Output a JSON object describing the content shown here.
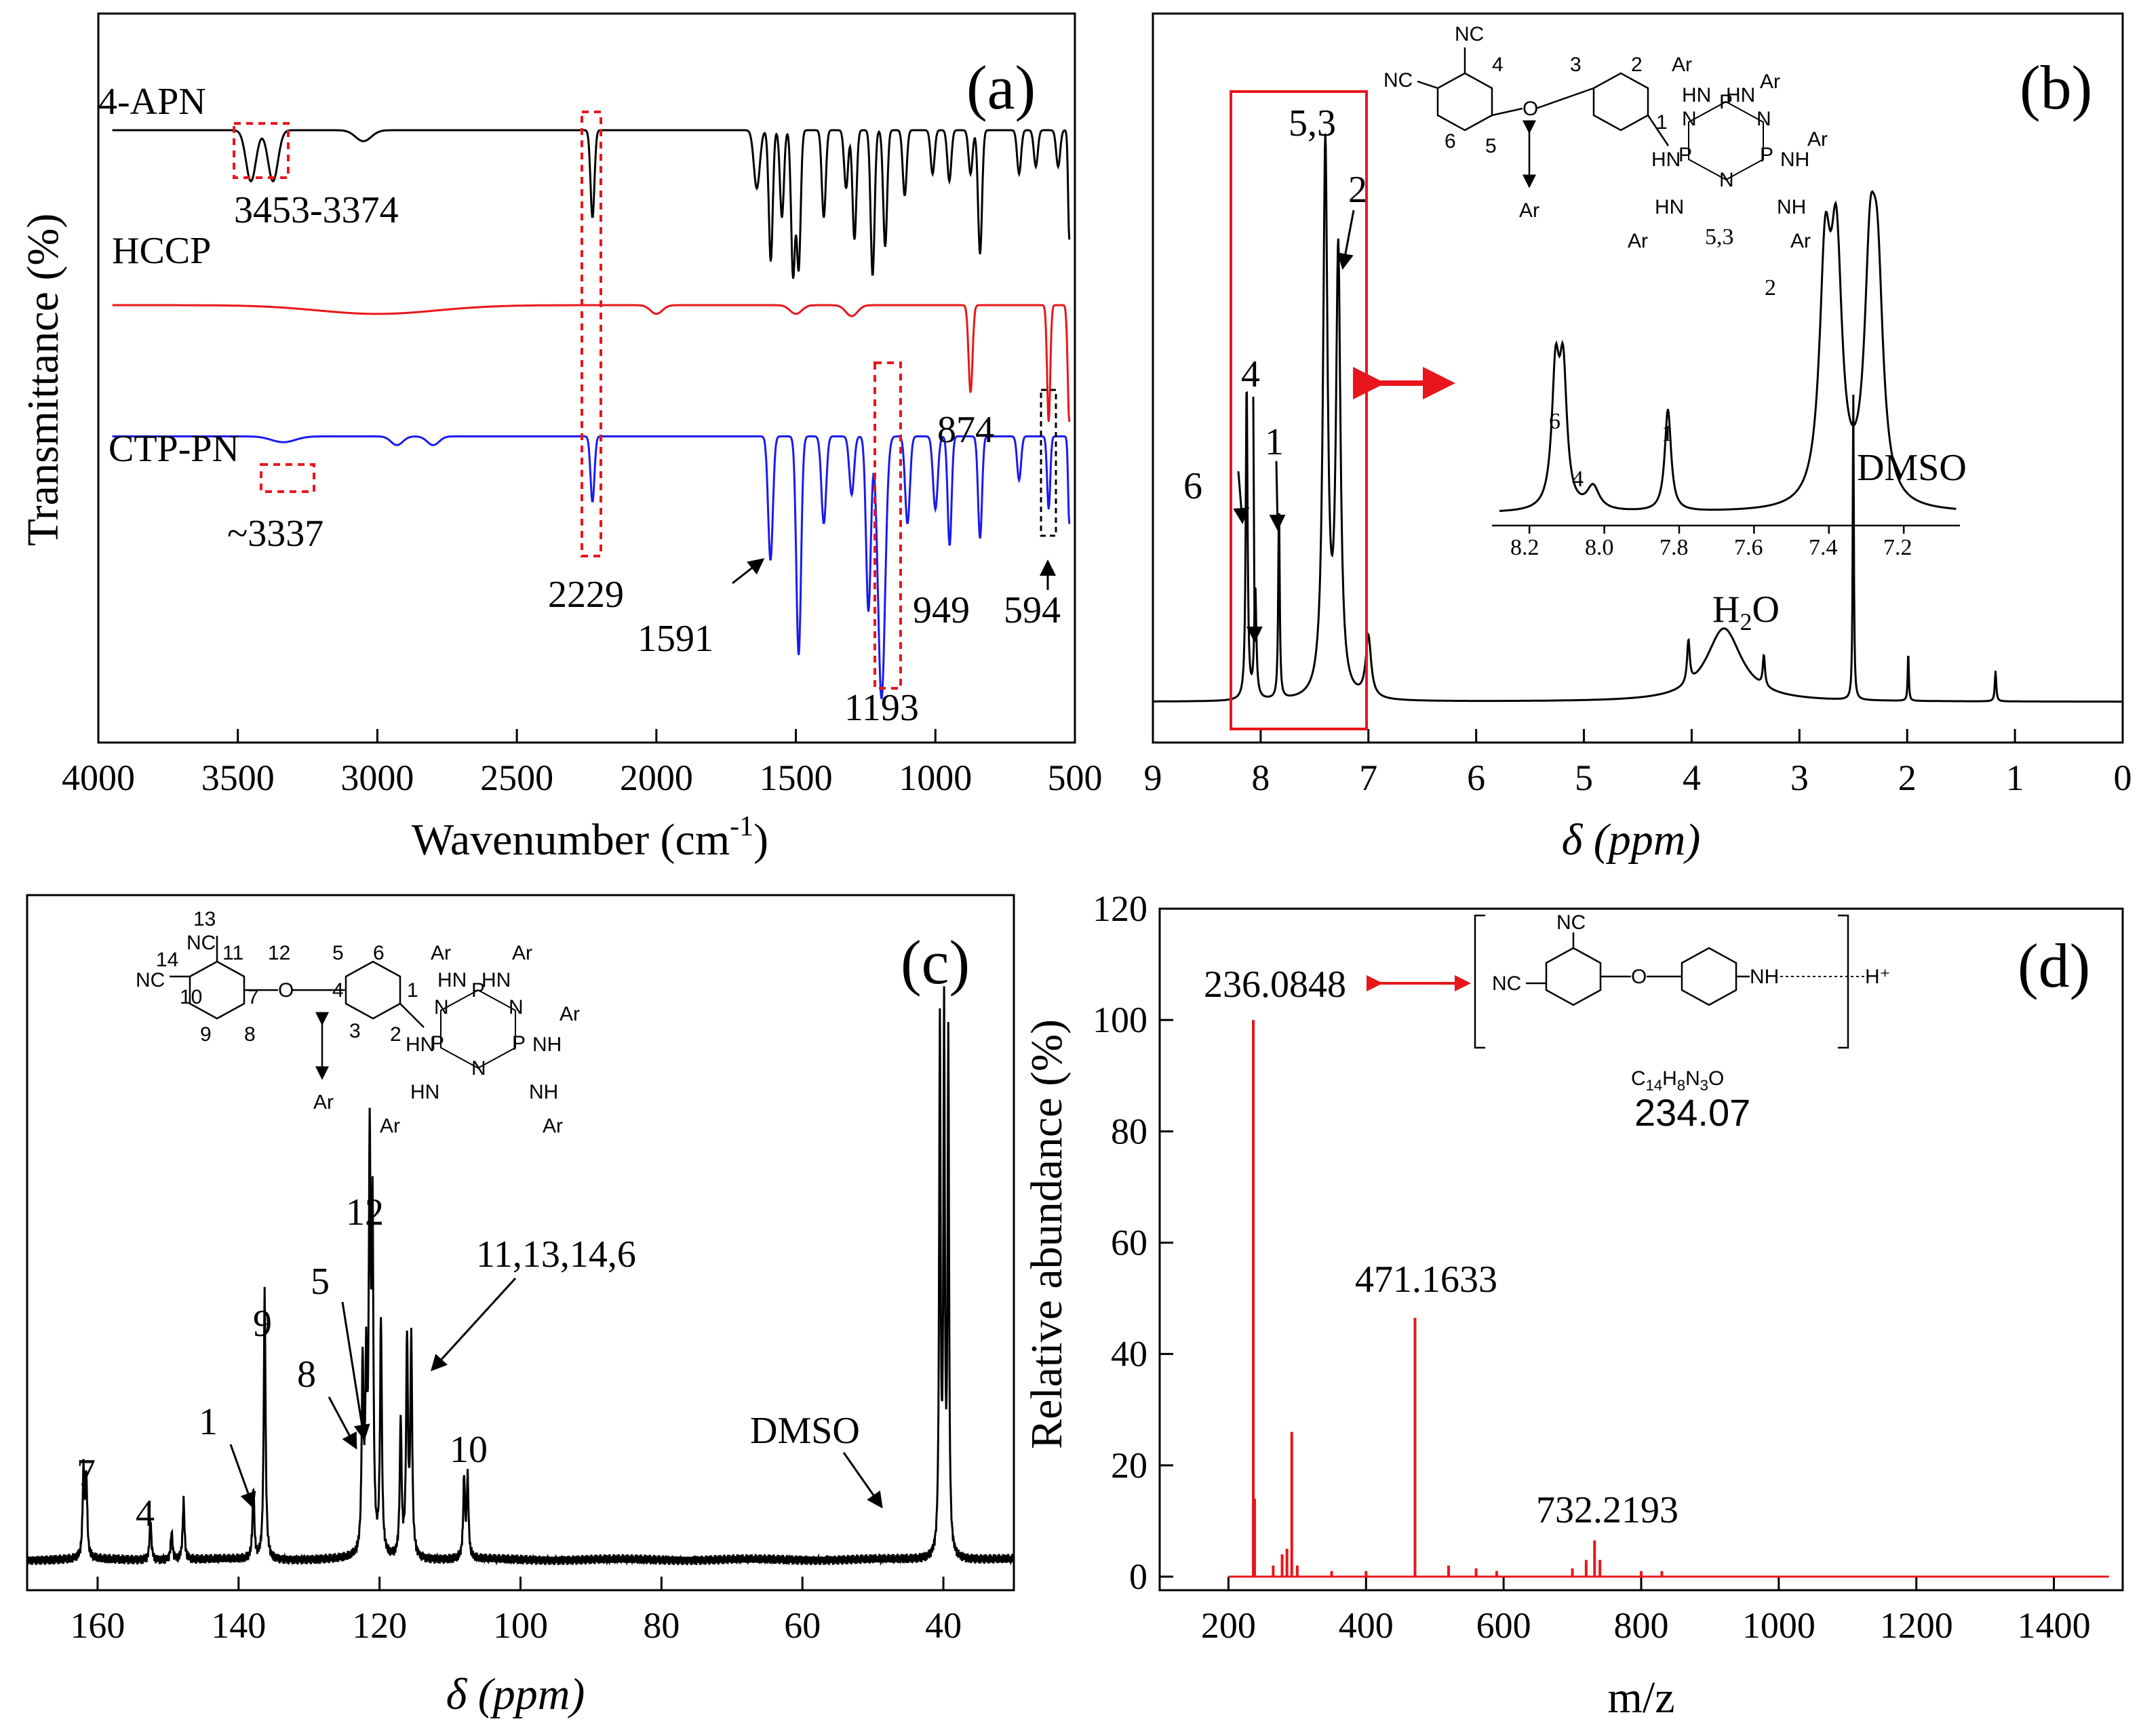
{
  "colors": {
    "black": "#000000",
    "red": "#e8161b",
    "blue": "#1a1af0",
    "magenta": "#e020e0",
    "hl_red": "#e8161b"
  },
  "chart_data": [
    {
      "panel": "(a)",
      "type": "line",
      "xlabel": "Wavenumber (cm",
      "xlabel_sup": "-1",
      "xlabel_end": ")",
      "ylabel": "Transmittance (%)",
      "xlim": [
        4000,
        500
      ],
      "xticks": [
        4000,
        3500,
        3000,
        2500,
        2000,
        1500,
        1000,
        500
      ],
      "series": [
        {
          "name": "4-APN",
          "color": "#000000",
          "baseline": 0.84,
          "peaks": [
            [
              3453,
              0.07,
              25
            ],
            [
              3374,
              0.07,
              25
            ],
            [
              3050,
              0.015,
              40
            ],
            [
              2229,
              0.12,
              10
            ],
            [
              1640,
              0.08,
              15
            ],
            [
              1590,
              0.18,
              10
            ],
            [
              1550,
              0.12,
              10
            ],
            [
              1510,
              0.2,
              10
            ],
            [
              1490,
              0.19,
              10
            ],
            [
              1400,
              0.12,
              10
            ],
            [
              1320,
              0.08,
              10
            ],
            [
              1290,
              0.15,
              10
            ],
            [
              1225,
              0.2,
              10
            ],
            [
              1180,
              0.16,
              10
            ],
            [
              1110,
              0.09,
              10
            ],
            [
              1010,
              0.06,
              10
            ],
            [
              950,
              0.07,
              10
            ],
            [
              874,
              0.06,
              10
            ],
            [
              840,
              0.17,
              10
            ],
            [
              700,
              0.06,
              10
            ],
            [
              640,
              0.05,
              10
            ],
            [
              560,
              0.05,
              10
            ],
            [
              520,
              0.15,
              6
            ]
          ]
        },
        {
          "name": "HCCP",
          "color": "#e8161b",
          "baseline": 0.6,
          "peaks": [
            [
              3000,
              0.012,
              300
            ],
            [
              2000,
              0.012,
              30
            ],
            [
              1500,
              0.012,
              30
            ],
            [
              1300,
              0.015,
              30
            ],
            [
              874,
              0.12,
              10
            ],
            [
              594,
              0.16,
              8
            ],
            [
              520,
              0.16,
              8
            ]
          ]
        },
        {
          "name": "CTP-PN",
          "color": "#1a1af0",
          "baseline": 0.42,
          "peaks": [
            [
              3337,
              0.008,
              60
            ],
            [
              2930,
              0.012,
              30
            ],
            [
              2800,
              0.012,
              30
            ],
            [
              2229,
              0.09,
              10
            ],
            [
              1591,
              0.17,
              12
            ],
            [
              1490,
              0.3,
              12
            ],
            [
              1400,
              0.12,
              12
            ],
            [
              1300,
              0.08,
              12
            ],
            [
              1240,
              0.24,
              12
            ],
            [
              1193,
              0.36,
              18
            ],
            [
              1100,
              0.12,
              12
            ],
            [
              1000,
              0.1,
              12
            ],
            [
              949,
              0.15,
              10
            ],
            [
              840,
              0.14,
              10
            ],
            [
              700,
              0.06,
              10
            ],
            [
              594,
              0.1,
              8
            ],
            [
              520,
              0.12,
              6
            ]
          ]
        }
      ],
      "labels": {
        "apn": "4-APN",
        "hccp": "HCCP",
        "ctp": "CTP-PN",
        "p3453": "3453-3374",
        "p3337": "~3337",
        "p2229": "2229",
        "p874": "874",
        "p1591": "1591",
        "p949": "949",
        "p594": "594",
        "p1193": "1193"
      }
    },
    {
      "panel": "(b)",
      "type": "line",
      "xlabel": "δ (ppm)",
      "xlim": [
        9,
        0
      ],
      "xticks": [
        9,
        8,
        7,
        6,
        5,
        4,
        3,
        2,
        1,
        0
      ],
      "peaks": [
        [
          8.13,
          0.52,
          0.01
        ],
        [
          8.05,
          0.18,
          0.012
        ],
        [
          7.83,
          0.32,
          0.008
        ],
        [
          7.4,
          0.9,
          0.025
        ],
        [
          7.28,
          0.72,
          0.025
        ],
        [
          7.0,
          0.1,
          0.03
        ],
        [
          4.03,
          0.07,
          0.015
        ],
        [
          3.7,
          0.12,
          0.2
        ],
        [
          3.33,
          0.05,
          0.012
        ],
        [
          2.5,
          0.5,
          0.006
        ],
        [
          1.99,
          0.08,
          0.006
        ],
        [
          1.18,
          0.05,
          0.008
        ]
      ],
      "labels": {
        "p53": "5,3",
        "p2": "2",
        "p4": "4",
        "p6": "6",
        "p1": "1",
        "dmso": "DMSO",
        "h2o": "H",
        "h2o_sub": "2",
        "h2o_end": "O"
      },
      "inset": {
        "xlim": [
          8.3,
          7.05
        ],
        "xticks": [
          "8.2",
          "8.0",
          "7.8",
          "7.6",
          "7.4",
          "7.2"
        ],
        "peaks": [
          [
            8.13,
            0.45,
            0.012
          ],
          [
            8.11,
            0.45,
            0.012
          ],
          [
            8.03,
            0.08,
            0.02
          ],
          [
            7.83,
            0.35,
            0.01
          ],
          [
            7.41,
            0.78,
            0.018
          ],
          [
            7.38,
            0.8,
            0.018
          ],
          [
            7.29,
            0.72,
            0.018
          ],
          [
            7.27,
            0.66,
            0.018
          ]
        ],
        "labels": {
          "p6": "6",
          "p4": "4",
          "p1": "1",
          "p53": "5,3",
          "p2": "2"
        }
      }
    },
    {
      "panel": "(c)",
      "type": "line",
      "xlabel": "δ (ppm)",
      "xlim": [
        170,
        30
      ],
      "xticks": [
        160,
        140,
        120,
        100,
        80,
        60,
        40
      ],
      "peaks": [
        [
          162.0,
          0.22,
          0.15
        ],
        [
          161.6,
          0.2,
          0.15
        ],
        [
          152.5,
          0.1,
          0.15
        ],
        [
          149.5,
          0.07,
          0.15
        ],
        [
          147.8,
          0.15,
          0.15
        ],
        [
          137.9,
          0.18,
          0.15
        ],
        [
          136.3,
          0.68,
          0.15
        ],
        [
          122.4,
          0.48,
          0.15
        ],
        [
          121.9,
          0.43,
          0.15
        ],
        [
          121.4,
          1.0,
          0.15
        ],
        [
          121.0,
          0.82,
          0.15
        ],
        [
          119.8,
          0.6,
          0.15
        ],
        [
          117.0,
          0.35,
          0.15
        ],
        [
          116.1,
          0.55,
          0.15
        ],
        [
          115.5,
          0.55,
          0.15
        ],
        [
          108.0,
          0.2,
          0.15
        ],
        [
          107.5,
          0.2,
          0.15
        ],
        [
          40.5,
          1.35,
          0.12
        ],
        [
          39.9,
          1.35,
          0.12
        ],
        [
          39.3,
          1.3,
          0.12
        ]
      ],
      "labels": {
        "p7": "7",
        "p4": "4",
        "p1": "1",
        "p9": "9",
        "p8": "8",
        "p5": "5",
        "p12": "12",
        "p11": "11,13,14,6",
        "p10": "10",
        "dmso": "DMSO"
      }
    },
    {
      "panel": "(d)",
      "type": "bar",
      "xlabel": "m/z",
      "ylabel": "Relative abundance (%)",
      "xlim": [
        100,
        1500
      ],
      "ylim": [
        0,
        120
      ],
      "xticks": [
        200,
        400,
        600,
        800,
        1000,
        1200,
        1400
      ],
      "yticks": [
        0,
        20,
        40,
        60,
        80,
        100,
        120
      ],
      "peaks": [
        [
          236.0848,
          100
        ],
        [
          238,
          14
        ],
        [
          265,
          2
        ],
        [
          278,
          4
        ],
        [
          285,
          5
        ],
        [
          292,
          26
        ],
        [
          300,
          2
        ],
        [
          350,
          1
        ],
        [
          400,
          1
        ],
        [
          471.1633,
          46.5
        ],
        [
          520,
          2
        ],
        [
          560,
          1.5
        ],
        [
          590,
          1
        ],
        [
          700,
          1.5
        ],
        [
          720,
          3
        ],
        [
          732.2193,
          6.5
        ],
        [
          740,
          3
        ],
        [
          800,
          1
        ],
        [
          830,
          1
        ]
      ],
      "labels": {
        "p236": "236.0848",
        "p471": "471.1633",
        "p732": "732.2193"
      },
      "formula": {
        "main": "C",
        "s1": "14",
        "m1": "H",
        "s2": "8",
        "m2": "N",
        "s3": "3",
        "m3": "O",
        "mass": "234.07"
      }
    }
  ],
  "molecule": {
    "nc": "NC",
    "nh": "NH",
    "hn": "HN",
    "ar": "Ar",
    "o": "O",
    "p": "P",
    "n": "N",
    "h_plus": "H⁺",
    "b_nums": {
      "n4": "4",
      "n3": "3",
      "n2": "2",
      "n6": "6",
      "n5": "5",
      "n1": "1"
    },
    "c_nums": {
      "n13": "13",
      "n14": "14",
      "n11": "11",
      "n12": "12",
      "n10": "10",
      "n7": "7",
      "n9": "9",
      "n8": "8",
      "n5": "5",
      "n4": "4",
      "n6": "6",
      "n3": "3",
      "n2": "2",
      "n1": "1"
    }
  }
}
